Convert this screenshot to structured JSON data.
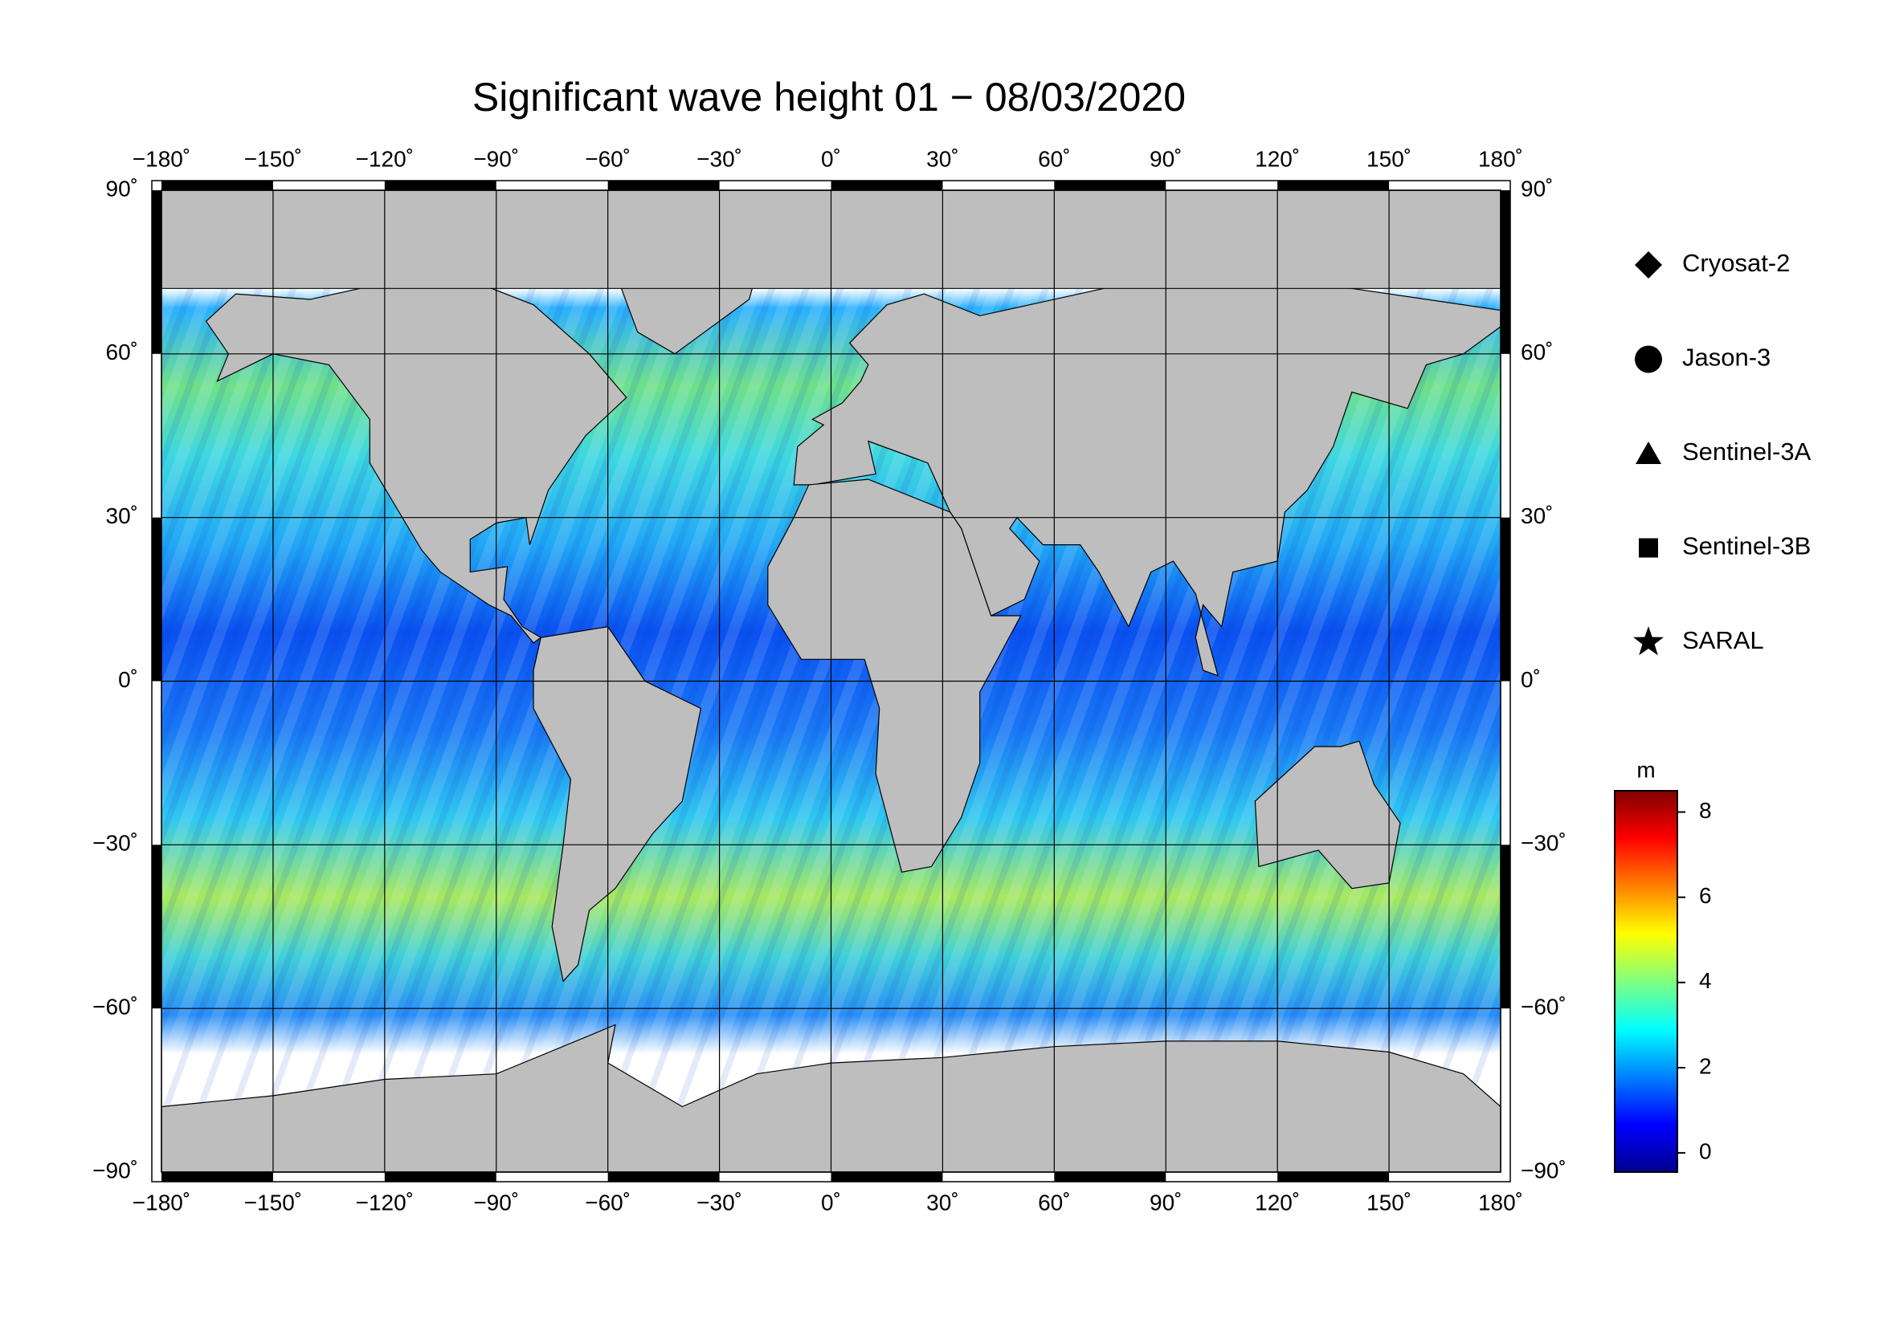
{
  "chart_data": {
    "type": "map",
    "title": "Significant wave height 01 − 08/03/2020",
    "xlim": [
      -180,
      180
    ],
    "ylim": [
      -90,
      90
    ],
    "xticks": [
      {
        "value": -180,
        "label": "−180˚"
      },
      {
        "value": -150,
        "label": "−150˚"
      },
      {
        "value": -120,
        "label": "−120˚"
      },
      {
        "value": -90,
        "label": "−90˚"
      },
      {
        "value": -60,
        "label": "−60˚"
      },
      {
        "value": -30,
        "label": "−30˚"
      },
      {
        "value": 0,
        "label": "0˚"
      },
      {
        "value": 30,
        "label": "30˚"
      },
      {
        "value": 60,
        "label": "60˚"
      },
      {
        "value": 90,
        "label": "90˚"
      },
      {
        "value": 120,
        "label": "120˚"
      },
      {
        "value": 150,
        "label": "150˚"
      },
      {
        "value": 180,
        "label": "180˚"
      }
    ],
    "yticks": [
      {
        "value": 90,
        "label": "90˚"
      },
      {
        "value": 60,
        "label": "60˚"
      },
      {
        "value": 30,
        "label": "30˚"
      },
      {
        "value": 0,
        "label": "0˚"
      },
      {
        "value": -30,
        "label": "−30˚"
      },
      {
        "value": -60,
        "label": "−60˚"
      },
      {
        "value": -90,
        "label": "−90˚"
      }
    ],
    "grid": true,
    "legend": [
      {
        "name": "Cryosat-2",
        "marker": "diamond"
      },
      {
        "name": "Jason-3",
        "marker": "circle"
      },
      {
        "name": "Sentinel-3A",
        "marker": "triangle"
      },
      {
        "name": "Sentinel-3B",
        "marker": "square"
      },
      {
        "name": "SARAL",
        "marker": "star"
      }
    ],
    "colorbar": {
      "label": "m",
      "lim": [
        -0.45,
        8.5
      ],
      "ticks": [
        0,
        2,
        4,
        6,
        8
      ],
      "colors": [
        "#00008f",
        "#0000ff",
        "#0080ff",
        "#00ffff",
        "#80ff80",
        "#ffff00",
        "#ff8000",
        "#ff0000",
        "#800000"
      ]
    }
  }
}
